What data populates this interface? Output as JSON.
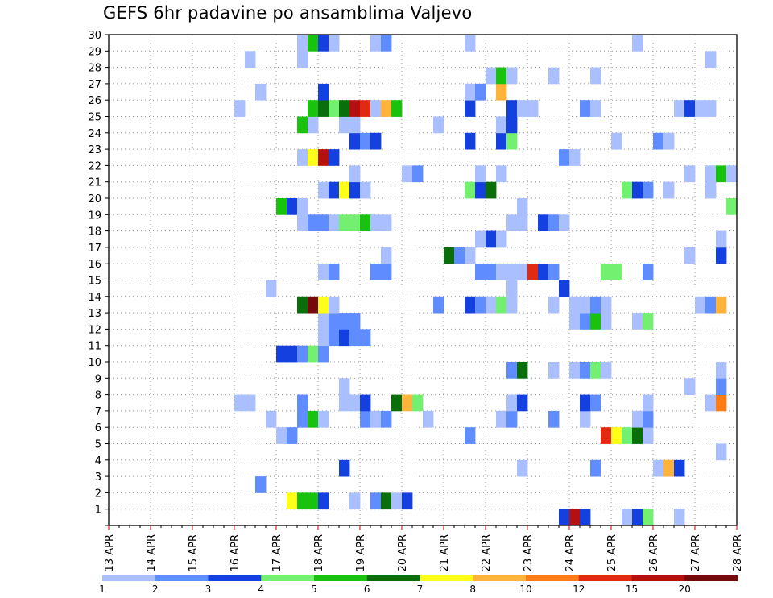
{
  "title": "GEFS 6hr padavine po ansamblima Valjevo",
  "colors": {
    "levels": [
      "#aabfff",
      "#5f8cff",
      "#1540e0",
      "#73f06f",
      "#19c20d",
      "#0a6e0a",
      "#ffff19",
      "#ffb33a",
      "#ff7b13",
      "#e02b10",
      "#b51010",
      "#760a0a"
    ],
    "axis": "#000000",
    "grid": "#999999",
    "date_tick": "#cc0000"
  },
  "chart_data": {
    "type": "heatmap",
    "title": "GEFS 6hr padavine po ansamblima Valjevo",
    "xlabel": "",
    "ylabel": "",
    "x_unit": "6-hour step from 13 APR",
    "x_range": [
      0,
      60
    ],
    "y_range": [
      0,
      30
    ],
    "x_tick_labels": [
      "13 APR",
      "14 APR",
      "15 APR",
      "16 APR",
      "17 APR",
      "18 APR",
      "19 APR",
      "20 APR",
      "21 APR",
      "22 APR",
      "23 APR",
      "24 APR",
      "25 APR",
      "26 APR",
      "27 APR",
      "28 APR"
    ],
    "y_tick_labels": [
      "1",
      "2",
      "3",
      "4",
      "5",
      "6",
      "7",
      "8",
      "9",
      "10",
      "11",
      "12",
      "13",
      "14",
      "15",
      "16",
      "17",
      "18",
      "19",
      "20",
      "21",
      "22",
      "23",
      "24",
      "25",
      "26",
      "27",
      "28",
      "29",
      "30"
    ],
    "legend_labels": [
      "1",
      "2",
      "3",
      "4",
      "5",
      "6",
      "7",
      "8",
      "10",
      "12",
      "15",
      "20"
    ],
    "legend_thresholds": [
      1,
      2,
      3,
      4,
      5,
      6,
      7,
      8,
      10,
      12,
      15,
      20
    ],
    "cells": [
      [
        43,
        0,
        3
      ],
      [
        44,
        0,
        11
      ],
      [
        45,
        0,
        3
      ],
      [
        49,
        0,
        1
      ],
      [
        50,
        0,
        3
      ],
      [
        51,
        0,
        4
      ],
      [
        54,
        0,
        1
      ],
      [
        17,
        1,
        7
      ],
      [
        18,
        1,
        5
      ],
      [
        19,
        1,
        5
      ],
      [
        20,
        1,
        3
      ],
      [
        23,
        1,
        1
      ],
      [
        25,
        1,
        2
      ],
      [
        26,
        1,
        6
      ],
      [
        27,
        1,
        1
      ],
      [
        28,
        1,
        3
      ],
      [
        14,
        2,
        2
      ],
      [
        22,
        3,
        3
      ],
      [
        39,
        3,
        1
      ],
      [
        46,
        3,
        2
      ],
      [
        52,
        3,
        1
      ],
      [
        53,
        3,
        8
      ],
      [
        54,
        3,
        3
      ],
      [
        58,
        4,
        1
      ],
      [
        16,
        5,
        1
      ],
      [
        17,
        5,
        2
      ],
      [
        34,
        5,
        2
      ],
      [
        47,
        5,
        10
      ],
      [
        48,
        5,
        7
      ],
      [
        49,
        5,
        4
      ],
      [
        50,
        5,
        6
      ],
      [
        51,
        5,
        1
      ],
      [
        15,
        6,
        1
      ],
      [
        18,
        6,
        2
      ],
      [
        19,
        6,
        5
      ],
      [
        20,
        6,
        1
      ],
      [
        24,
        6,
        2
      ],
      [
        25,
        6,
        1
      ],
      [
        26,
        6,
        2
      ],
      [
        30,
        6,
        1
      ],
      [
        37,
        6,
        1
      ],
      [
        38,
        6,
        2
      ],
      [
        42,
        6,
        2
      ],
      [
        45,
        6,
        1
      ],
      [
        50,
        6,
        1
      ],
      [
        51,
        6,
        2
      ],
      [
        12,
        7,
        1
      ],
      [
        13,
        7,
        1
      ],
      [
        18,
        7,
        2
      ],
      [
        22,
        7,
        1
      ],
      [
        23,
        7,
        1
      ],
      [
        24,
        7,
        3
      ],
      [
        27,
        7,
        6
      ],
      [
        28,
        7,
        8
      ],
      [
        29,
        7,
        4
      ],
      [
        38,
        7,
        1
      ],
      [
        39,
        7,
        3
      ],
      [
        45,
        7,
        3
      ],
      [
        46,
        7,
        2
      ],
      [
        51,
        7,
        1
      ],
      [
        57,
        7,
        1
      ],
      [
        58,
        7,
        9
      ],
      [
        22,
        8,
        1
      ],
      [
        55,
        8,
        1
      ],
      [
        58,
        8,
        2
      ],
      [
        38,
        9,
        2
      ],
      [
        39,
        9,
        6
      ],
      [
        42,
        9,
        1
      ],
      [
        44,
        9,
        1
      ],
      [
        45,
        9,
        2
      ],
      [
        46,
        9,
        4
      ],
      [
        47,
        9,
        1
      ],
      [
        58,
        9,
        1
      ],
      [
        16,
        10,
        3
      ],
      [
        17,
        10,
        3
      ],
      [
        18,
        10,
        2
      ],
      [
        19,
        10,
        4
      ],
      [
        20,
        10,
        2
      ],
      [
        20,
        11,
        1
      ],
      [
        21,
        11,
        2
      ],
      [
        22,
        11,
        3
      ],
      [
        23,
        11,
        2
      ],
      [
        24,
        11,
        2
      ],
      [
        20,
        12,
        1
      ],
      [
        21,
        12,
        2
      ],
      [
        22,
        12,
        2
      ],
      [
        23,
        12,
        2
      ],
      [
        44,
        12,
        1
      ],
      [
        45,
        12,
        2
      ],
      [
        46,
        12,
        5
      ],
      [
        47,
        12,
        1
      ],
      [
        50,
        12,
        1
      ],
      [
        51,
        12,
        4
      ],
      [
        18,
        13,
        6
      ],
      [
        19,
        13,
        12
      ],
      [
        20,
        13,
        7
      ],
      [
        21,
        13,
        1
      ],
      [
        31,
        13,
        2
      ],
      [
        34,
        13,
        3
      ],
      [
        35,
        13,
        2
      ],
      [
        36,
        13,
        1
      ],
      [
        37,
        13,
        4
      ],
      [
        38,
        13,
        1
      ],
      [
        42,
        13,
        1
      ],
      [
        44,
        13,
        1
      ],
      [
        45,
        13,
        1
      ],
      [
        46,
        13,
        2
      ],
      [
        47,
        13,
        1
      ],
      [
        56,
        13,
        1
      ],
      [
        57,
        13,
        2
      ],
      [
        58,
        13,
        8
      ],
      [
        15,
        14,
        1
      ],
      [
        38,
        14,
        1
      ],
      [
        43,
        14,
        3
      ],
      [
        20,
        15,
        1
      ],
      [
        21,
        15,
        2
      ],
      [
        25,
        15,
        2
      ],
      [
        26,
        15,
        2
      ],
      [
        35,
        15,
        2
      ],
      [
        36,
        15,
        2
      ],
      [
        37,
        15,
        1
      ],
      [
        38,
        15,
        1
      ],
      [
        39,
        15,
        1
      ],
      [
        40,
        15,
        10
      ],
      [
        41,
        15,
        3
      ],
      [
        42,
        15,
        2
      ],
      [
        47,
        15,
        4
      ],
      [
        48,
        15,
        4
      ],
      [
        51,
        15,
        2
      ],
      [
        26,
        16,
        1
      ],
      [
        32,
        16,
        6
      ],
      [
        33,
        16,
        2
      ],
      [
        34,
        16,
        1
      ],
      [
        55,
        16,
        1
      ],
      [
        58,
        16,
        3
      ],
      [
        35,
        17,
        1
      ],
      [
        36,
        17,
        3
      ],
      [
        37,
        17,
        1
      ],
      [
        58,
        17,
        1
      ],
      [
        18,
        18,
        1
      ],
      [
        19,
        18,
        2
      ],
      [
        20,
        18,
        2
      ],
      [
        21,
        18,
        1
      ],
      [
        22,
        18,
        4
      ],
      [
        23,
        18,
        4
      ],
      [
        24,
        18,
        5
      ],
      [
        25,
        18,
        1
      ],
      [
        26,
        18,
        1
      ],
      [
        38,
        18,
        1
      ],
      [
        39,
        18,
        1
      ],
      [
        41,
        18,
        3
      ],
      [
        42,
        18,
        2
      ],
      [
        43,
        18,
        1
      ],
      [
        16,
        19,
        5
      ],
      [
        17,
        19,
        3
      ],
      [
        18,
        19,
        1
      ],
      [
        39,
        19,
        1
      ],
      [
        59,
        19,
        4
      ],
      [
        20,
        20,
        1
      ],
      [
        21,
        20,
        3
      ],
      [
        22,
        20,
        7
      ],
      [
        23,
        20,
        3
      ],
      [
        24,
        20,
        1
      ],
      [
        34,
        20,
        4
      ],
      [
        35,
        20,
        3
      ],
      [
        36,
        20,
        6
      ],
      [
        49,
        20,
        4
      ],
      [
        50,
        20,
        3
      ],
      [
        51,
        20,
        2
      ],
      [
        53,
        20,
        1
      ],
      [
        57,
        20,
        1
      ],
      [
        23,
        21,
        1
      ],
      [
        28,
        21,
        1
      ],
      [
        29,
        21,
        2
      ],
      [
        35,
        21,
        1
      ],
      [
        37,
        21,
        1
      ],
      [
        55,
        21,
        1
      ],
      [
        57,
        21,
        1
      ],
      [
        58,
        21,
        5
      ],
      [
        59,
        21,
        1
      ],
      [
        18,
        22,
        1
      ],
      [
        19,
        22,
        7
      ],
      [
        20,
        22,
        11
      ],
      [
        21,
        22,
        3
      ],
      [
        43,
        22,
        2
      ],
      [
        44,
        22,
        1
      ],
      [
        23,
        23,
        3
      ],
      [
        24,
        23,
        2
      ],
      [
        25,
        23,
        3
      ],
      [
        34,
        23,
        3
      ],
      [
        37,
        23,
        3
      ],
      [
        38,
        23,
        4
      ],
      [
        48,
        23,
        1
      ],
      [
        52,
        23,
        2
      ],
      [
        53,
        23,
        1
      ],
      [
        18,
        24,
        5
      ],
      [
        19,
        24,
        1
      ],
      [
        22,
        24,
        1
      ],
      [
        23,
        24,
        1
      ],
      [
        31,
        24,
        1
      ],
      [
        37,
        24,
        1
      ],
      [
        38,
        24,
        3
      ],
      [
        12,
        25,
        1
      ],
      [
        19,
        25,
        5
      ],
      [
        20,
        25,
        6
      ],
      [
        21,
        25,
        4
      ],
      [
        22,
        25,
        6
      ],
      [
        23,
        25,
        11
      ],
      [
        24,
        25,
        10
      ],
      [
        25,
        25,
        1
      ],
      [
        26,
        25,
        8
      ],
      [
        27,
        25,
        5
      ],
      [
        34,
        25,
        3
      ],
      [
        38,
        25,
        3
      ],
      [
        39,
        25,
        1
      ],
      [
        40,
        25,
        1
      ],
      [
        45,
        25,
        2
      ],
      [
        46,
        25,
        1
      ],
      [
        54,
        25,
        1
      ],
      [
        55,
        25,
        3
      ],
      [
        56,
        25,
        1
      ],
      [
        57,
        25,
        1
      ],
      [
        14,
        26,
        1
      ],
      [
        20,
        26,
        3
      ],
      [
        34,
        26,
        1
      ],
      [
        35,
        26,
        2
      ],
      [
        37,
        26,
        8
      ],
      [
        36,
        27,
        1
      ],
      [
        37,
        27,
        5
      ],
      [
        38,
        27,
        1
      ],
      [
        42,
        27,
        1
      ],
      [
        46,
        27,
        1
      ],
      [
        13,
        28,
        1
      ],
      [
        18,
        28,
        1
      ],
      [
        57,
        28,
        1
      ],
      [
        18,
        29,
        1
      ],
      [
        19,
        29,
        5
      ],
      [
        20,
        29,
        3
      ],
      [
        21,
        29,
        1
      ],
      [
        25,
        29,
        1
      ],
      [
        26,
        29,
        2
      ],
      [
        34,
        29,
        1
      ],
      [
        50,
        29,
        1
      ]
    ]
  }
}
